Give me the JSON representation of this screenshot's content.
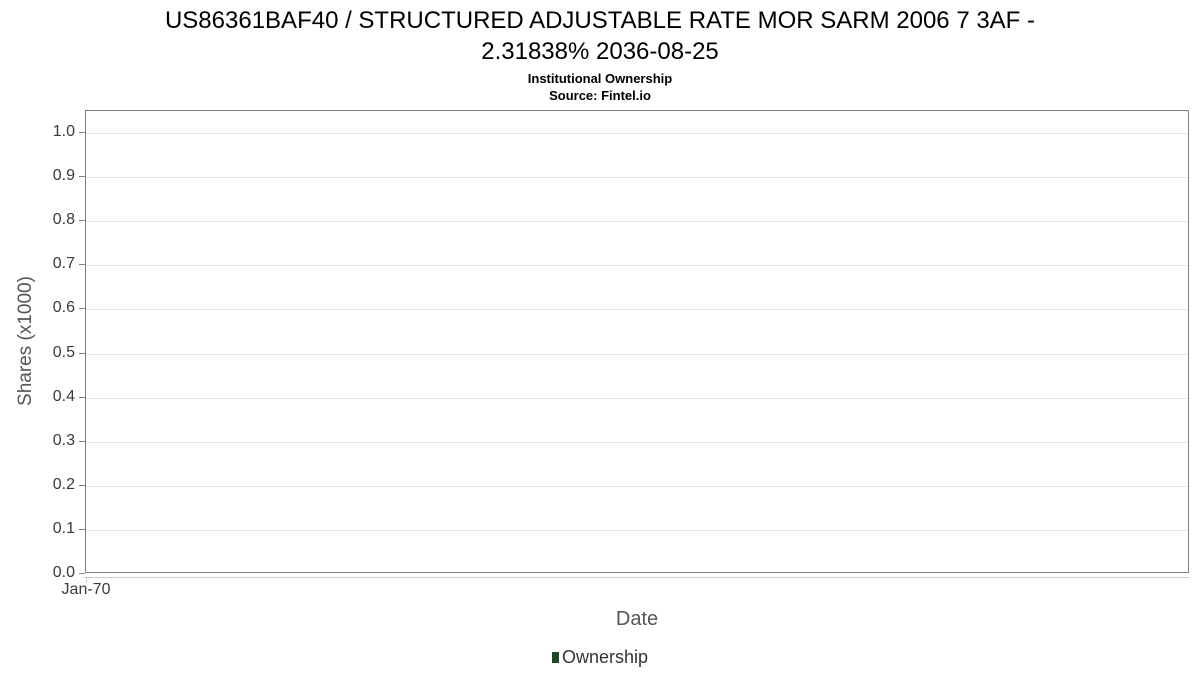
{
  "header": {
    "title_line1": "US86361BAF40 / STRUCTURED ADJUSTABLE RATE MOR SARM 2006 7 3AF -",
    "title_line2": "2.31838% 2036-08-25",
    "subtitle": "Institutional Ownership",
    "source": "Source: Fintel.io"
  },
  "chart_data": {
    "type": "bar",
    "title": "US86361BAF40 / STRUCTURED ADJUSTABLE RATE MOR SARM 2006 7 3AF - 2.31838% 2036-08-25",
    "subtitle": "Institutional Ownership",
    "annotation": "Source: Fintel.io",
    "xlabel": "Date",
    "ylabel": "Shares (x1000)",
    "x_tick_labels": [
      "Jan-70"
    ],
    "y_tick_labels": [
      "0.0",
      "0.1",
      "0.2",
      "0.3",
      "0.4",
      "0.5",
      "0.6",
      "0.7",
      "0.8",
      "0.9",
      "1.0"
    ],
    "ylim": [
      0,
      1.05
    ],
    "grid": "horizontal-only",
    "legend_position": "bottom-center",
    "series": [
      {
        "name": "Ownership",
        "color": "#204828",
        "x": [],
        "values": []
      }
    ]
  },
  "legend": {
    "items": [
      {
        "label": "Ownership",
        "color": "#204828"
      }
    ]
  },
  "colors": {
    "plot_border": "#808080",
    "gridline": "#e6e6e6",
    "x_axis_line": "#cccccc",
    "tick_label": "#3a3a3a",
    "axis_title": "#555555",
    "legend_text": "#333333",
    "series_ownership": "#204828"
  }
}
